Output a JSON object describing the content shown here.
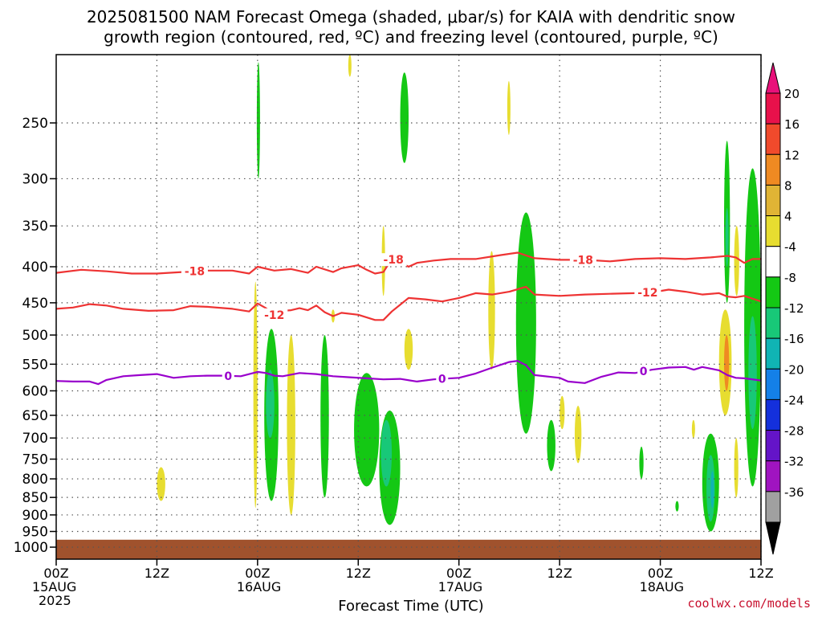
{
  "chart_data": {
    "type": "heatmap",
    "title_line1": "2025081500 NAM Forecast Omega (shaded, μbar/s) for KAIA with dendritic snow",
    "title_line2": "growth region (contoured, red, ºC) and freezing level (contoured, purple, ºC)",
    "xlabel": "Forecast Time (UTC)",
    "credit": "coolwx.com/models",
    "x_ticks": [
      {
        "hour": 0,
        "label": "00Z",
        "sub1": "15AUG",
        "sub2": "2025"
      },
      {
        "hour": 12,
        "label": "12Z",
        "sub1": "",
        "sub2": ""
      },
      {
        "hour": 24,
        "label": "00Z",
        "sub1": "16AUG",
        "sub2": ""
      },
      {
        "hour": 36,
        "label": "12Z",
        "sub1": "",
        "sub2": ""
      },
      {
        "hour": 48,
        "label": "00Z",
        "sub1": "17AUG",
        "sub2": ""
      },
      {
        "hour": 60,
        "label": "12Z",
        "sub1": "",
        "sub2": ""
      },
      {
        "hour": 72,
        "label": "00Z",
        "sub1": "18AUG",
        "sub2": ""
      },
      {
        "hour": 84,
        "label": "12Z",
        "sub1": "",
        "sub2": ""
      }
    ],
    "xlim_hours": [
      0,
      84
    ],
    "y_ticks": [
      250,
      300,
      350,
      400,
      450,
      500,
      550,
      600,
      650,
      700,
      750,
      800,
      850,
      900,
      950,
      1000
    ],
    "ylim_hpa": [
      200,
      1040
    ],
    "y_scale": "log",
    "grid": true,
    "colorbar": {
      "labels": [
        "20",
        "16",
        "12",
        "8",
        "4",
        "-4",
        "-8",
        "-12",
        "-16",
        "-20",
        "-24",
        "-28",
        "-32",
        "-36"
      ],
      "colors": [
        "#e8114b",
        "#f04a2c",
        "#ef8a22",
        "#e0b435",
        "#e7dd30",
        "#ffffff",
        "#14c814",
        "#18c878",
        "#10b4b4",
        "#1480e8",
        "#1430dc",
        "#6414c8",
        "#a014c0",
        "#a0a0a0"
      ],
      "top_arrow_color": "#e8117a",
      "bottom_arrow_color": "#000000"
    },
    "contours": [
      {
        "name": "-18",
        "color": "#ee3333",
        "label_positions_hours": [
          16.5,
          40.2,
          62.8
        ],
        "points": [
          [
            0,
            408
          ],
          [
            3,
            404
          ],
          [
            6,
            406
          ],
          [
            9,
            409
          ],
          [
            12,
            409
          ],
          [
            15,
            407
          ],
          [
            18,
            405
          ],
          [
            21,
            405
          ],
          [
            23,
            409
          ],
          [
            24,
            400
          ],
          [
            26,
            405
          ],
          [
            28,
            403
          ],
          [
            30,
            408
          ],
          [
            31,
            400
          ],
          [
            33,
            407
          ],
          [
            34,
            402
          ],
          [
            36,
            398
          ],
          [
            37,
            404
          ],
          [
            38,
            409
          ],
          [
            39,
            407
          ],
          [
            40,
            390
          ],
          [
            41,
            394
          ],
          [
            42,
            400
          ],
          [
            43,
            395
          ],
          [
            45,
            392
          ],
          [
            47,
            390
          ],
          [
            50,
            390
          ],
          [
            53,
            385
          ],
          [
            55,
            382
          ],
          [
            57,
            389
          ],
          [
            60,
            391
          ],
          [
            63,
            391
          ],
          [
            66,
            393
          ],
          [
            69,
            390
          ],
          [
            72,
            389
          ],
          [
            75,
            390
          ],
          [
            78,
            388
          ],
          [
            80,
            386
          ],
          [
            81,
            388
          ],
          [
            82,
            395
          ],
          [
            83,
            390
          ],
          [
            84,
            390
          ]
        ]
      },
      {
        "name": "-12",
        "color": "#ee3333",
        "label_positions_hours": [
          26.0,
          70.5
        ],
        "points": [
          [
            0,
            459
          ],
          [
            2,
            457
          ],
          [
            4,
            452
          ],
          [
            6,
            454
          ],
          [
            8,
            459
          ],
          [
            11,
            462
          ],
          [
            14,
            461
          ],
          [
            16,
            455
          ],
          [
            18,
            456
          ],
          [
            21,
            459
          ],
          [
            23,
            463
          ],
          [
            24,
            451
          ],
          [
            25,
            458
          ],
          [
            26,
            468
          ],
          [
            27,
            462
          ],
          [
            28,
            461
          ],
          [
            29,
            458
          ],
          [
            30,
            461
          ],
          [
            31,
            454
          ],
          [
            32,
            464
          ],
          [
            33,
            470
          ],
          [
            34,
            465
          ],
          [
            36,
            468
          ],
          [
            38,
            476
          ],
          [
            39,
            476
          ],
          [
            40,
            463
          ],
          [
            42,
            443
          ],
          [
            44,
            445
          ],
          [
            46,
            448
          ],
          [
            48,
            443
          ],
          [
            50,
            436
          ],
          [
            52,
            438
          ],
          [
            54,
            434
          ],
          [
            56,
            427
          ],
          [
            57,
            438
          ],
          [
            60,
            440
          ],
          [
            63,
            438
          ],
          [
            66,
            437
          ],
          [
            69,
            436
          ],
          [
            71,
            435
          ],
          [
            73,
            431
          ],
          [
            75,
            434
          ],
          [
            77,
            438
          ],
          [
            79,
            436
          ],
          [
            80,
            441
          ],
          [
            81,
            442
          ],
          [
            82,
            440
          ],
          [
            84,
            448
          ]
        ]
      },
      {
        "name": "0",
        "color": "#9900cc",
        "label_positions_hours": [
          20.5,
          46.0,
          70.0
        ],
        "points": [
          [
            0,
            581
          ],
          [
            2,
            582
          ],
          [
            4,
            582
          ],
          [
            5,
            587
          ],
          [
            6,
            579
          ],
          [
            8,
            572
          ],
          [
            10,
            570
          ],
          [
            12,
            568
          ],
          [
            14,
            575
          ],
          [
            16,
            572
          ],
          [
            18,
            571
          ],
          [
            20,
            571
          ],
          [
            22,
            572
          ],
          [
            24,
            564
          ],
          [
            25,
            566
          ],
          [
            26,
            571
          ],
          [
            27,
            572
          ],
          [
            29,
            566
          ],
          [
            31,
            568
          ],
          [
            33,
            572
          ],
          [
            35,
            574
          ],
          [
            37,
            576
          ],
          [
            39,
            578
          ],
          [
            41,
            577
          ],
          [
            43,
            582
          ],
          [
            45,
            578
          ],
          [
            48,
            575
          ],
          [
            50,
            567
          ],
          [
            52,
            556
          ],
          [
            54,
            546
          ],
          [
            55,
            544
          ],
          [
            56,
            552
          ],
          [
            57,
            570
          ],
          [
            60,
            575
          ],
          [
            61,
            582
          ],
          [
            63,
            585
          ],
          [
            65,
            573
          ],
          [
            67,
            565
          ],
          [
            69,
            566
          ],
          [
            71,
            560
          ],
          [
            73,
            556
          ],
          [
            75,
            555
          ],
          [
            76,
            560
          ],
          [
            77,
            555
          ],
          [
            79,
            561
          ],
          [
            80,
            570
          ],
          [
            81,
            575
          ],
          [
            82,
            576
          ],
          [
            84,
            580
          ]
        ]
      }
    ],
    "omega_regions_hpa_hours": [
      {
        "band": "-8",
        "h0": 24.0,
        "h1": 24.2,
        "p0": 205,
        "p1": 300
      },
      {
        "band": "-8",
        "h0": 41.0,
        "h1": 42.0,
        "p0": 212,
        "p1": 285
      },
      {
        "band": "4",
        "h0": 34.9,
        "h1": 35.1,
        "p0": 200,
        "p1": 215
      },
      {
        "band": "4",
        "h0": 53.8,
        "h1": 54.1,
        "p0": 218,
        "p1": 260
      },
      {
        "band": "4",
        "h0": 12.0,
        "h1": 13.0,
        "p0": 770,
        "p1": 860
      },
      {
        "band": "4",
        "h0": 23.5,
        "h1": 24.0,
        "p0": 420,
        "p1": 880
      },
      {
        "band": "-8",
        "h0": 24.8,
        "h1": 26.5,
        "p0": 490,
        "p1": 860
      },
      {
        "band": "-12",
        "h0": 25.0,
        "h1": 26.0,
        "p0": 560,
        "p1": 700
      },
      {
        "band": "4",
        "h0": 27.5,
        "h1": 28.5,
        "p0": 500,
        "p1": 900
      },
      {
        "band": "-8",
        "h0": 31.5,
        "h1": 32.5,
        "p0": 500,
        "p1": 850
      },
      {
        "band": "4",
        "h0": 32.8,
        "h1": 33.2,
        "p0": 460,
        "p1": 480
      },
      {
        "band": "-8",
        "h0": 35.5,
        "h1": 38.5,
        "p0": 566,
        "p1": 820
      },
      {
        "band": "-8",
        "h0": 38.5,
        "h1": 41.0,
        "p0": 640,
        "p1": 930
      },
      {
        "band": "-12",
        "h0": 38.7,
        "h1": 40.0,
        "p0": 660,
        "p1": 820
      },
      {
        "band": "4",
        "h0": 38.8,
        "h1": 39.2,
        "p0": 350,
        "p1": 440
      },
      {
        "band": "4",
        "h0": 41.5,
        "h1": 42.5,
        "p0": 490,
        "p1": 560
      },
      {
        "band": "4",
        "h0": 51.5,
        "h1": 52.3,
        "p0": 380,
        "p1": 560
      },
      {
        "band": "-8",
        "h0": 54.8,
        "h1": 57.2,
        "p0": 335,
        "p1": 690
      },
      {
        "band": "-8",
        "h0": 58.5,
        "h1": 59.5,
        "p0": 660,
        "p1": 780
      },
      {
        "band": "4",
        "h0": 60.0,
        "h1": 60.6,
        "p0": 610,
        "p1": 680
      },
      {
        "band": "4",
        "h0": 61.8,
        "h1": 62.6,
        "p0": 630,
        "p1": 760
      },
      {
        "band": "-8",
        "h0": 69.5,
        "h1": 70.0,
        "p0": 720,
        "p1": 800
      },
      {
        "band": "-8",
        "h0": 73.8,
        "h1": 74.2,
        "p0": 860,
        "p1": 890
      },
      {
        "band": "4",
        "h0": 75.8,
        "h1": 76.1,
        "p0": 660,
        "p1": 700
      },
      {
        "band": "-8",
        "h0": 77.0,
        "h1": 79.0,
        "p0": 690,
        "p1": 950
      },
      {
        "band": "-12",
        "h0": 77.5,
        "h1": 78.5,
        "p0": 740,
        "p1": 920
      },
      {
        "band": "-16",
        "h0": 78.0,
        "h1": 78.4,
        "p0": 780,
        "p1": 880
      },
      {
        "band": "4",
        "h0": 79.0,
        "h1": 80.5,
        "p0": 460,
        "p1": 650
      },
      {
        "band": "12",
        "h0": 79.6,
        "h1": 80.2,
        "p0": 500,
        "p1": 600
      },
      {
        "band": "-8",
        "h0": 79.6,
        "h1": 80.3,
        "p0": 265,
        "p1": 450
      },
      {
        "band": "-12",
        "h0": 79.8,
        "h1": 80.1,
        "p0": 330,
        "p1": 400
      },
      {
        "band": "4",
        "h0": 80.8,
        "h1": 81.4,
        "p0": 350,
        "p1": 440
      },
      {
        "band": "-8",
        "h0": 82.0,
        "h1": 84.0,
        "p0": 290,
        "p1": 820
      },
      {
        "band": "-12",
        "h0": 82.5,
        "h1": 83.5,
        "p0": 470,
        "p1": 680
      },
      {
        "band": "4",
        "h0": 80.8,
        "h1": 81.3,
        "p0": 700,
        "p1": 850
      }
    ],
    "ground_hpa": 976,
    "ground_color": "#a0522d"
  }
}
